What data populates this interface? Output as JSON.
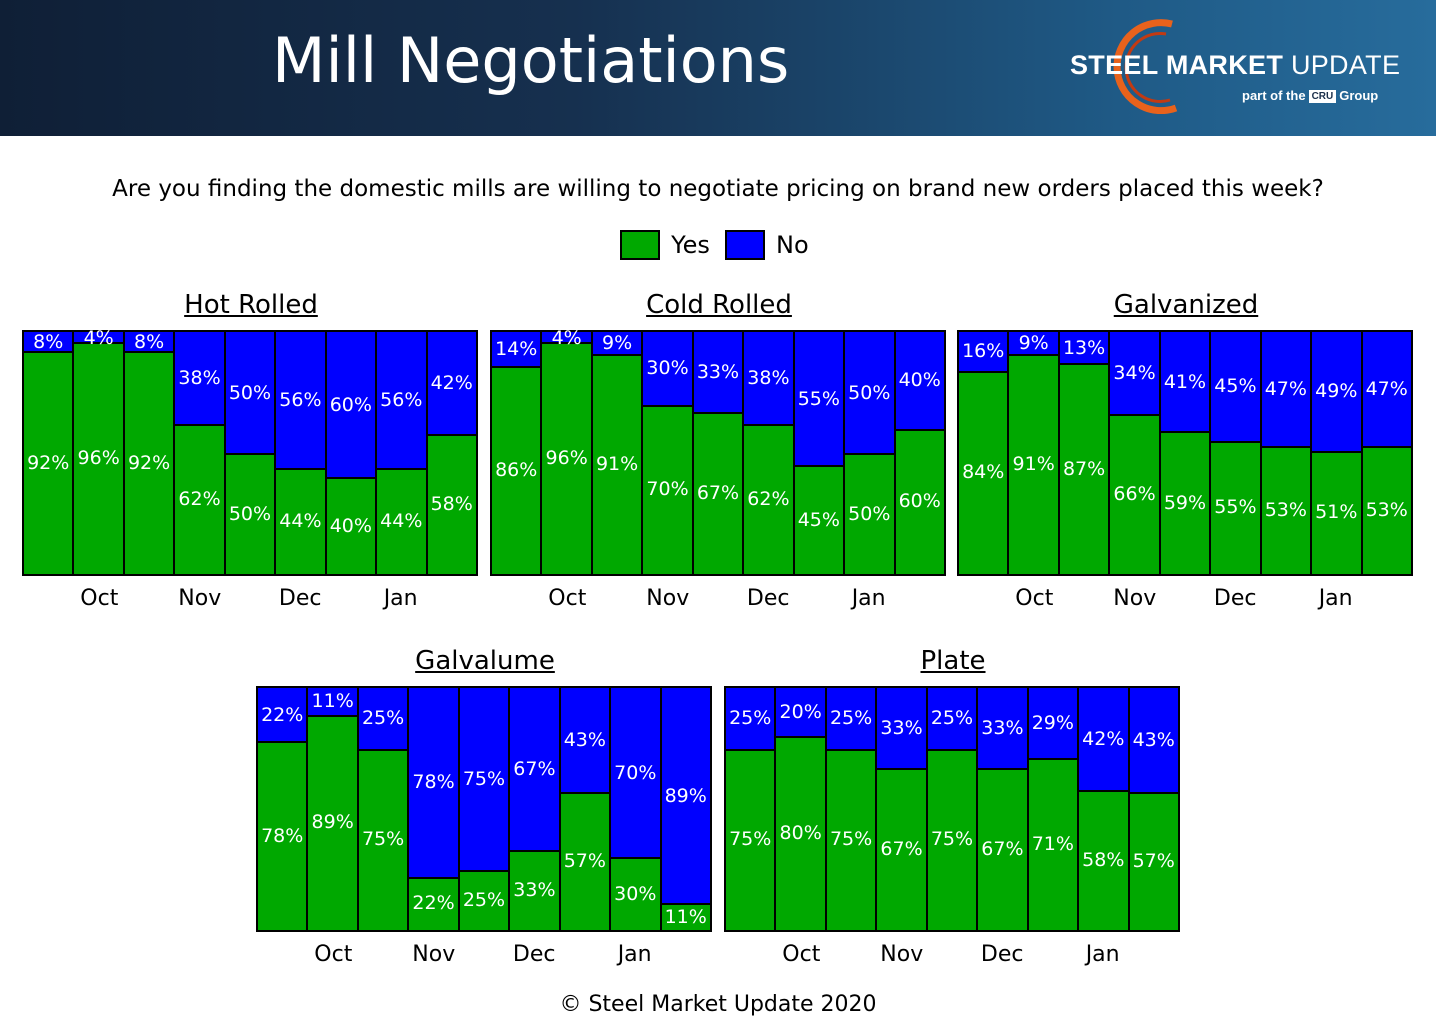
{
  "header": {
    "title": "Mill Negotiations"
  },
  "logo": {
    "name_bold": "STEEL MARKET",
    "name_regular": "UPDATE",
    "sub_prefix": "part of the",
    "sub_badge": "CRU",
    "sub_suffix": "Group"
  },
  "question": "Are you finding the domestic mills are willing to negotiate pricing on brand new orders placed this week?",
  "legend": {
    "yes": "Yes",
    "no": "No"
  },
  "colors": {
    "yes": "#00a800",
    "no": "#0000ff"
  },
  "footer": "© Steel Market Update 2020",
  "chart_data": [
    {
      "type": "bar",
      "stacked": true,
      "title": "Hot Rolled",
      "ylim": [
        0,
        100
      ],
      "x_ticks": [
        "Oct",
        "Nov",
        "Dec",
        "Jan"
      ],
      "series": [
        {
          "name": "Yes",
          "values": [
            92,
            96,
            92,
            62,
            50,
            44,
            40,
            44,
            58
          ]
        },
        {
          "name": "No",
          "values": [
            8,
            4,
            8,
            38,
            50,
            56,
            60,
            56,
            42
          ]
        }
      ]
    },
    {
      "type": "bar",
      "stacked": true,
      "title": "Cold Rolled",
      "ylim": [
        0,
        100
      ],
      "x_ticks": [
        "Oct",
        "Nov",
        "Dec",
        "Jan"
      ],
      "series": [
        {
          "name": "Yes",
          "values": [
            86,
            96,
            91,
            70,
            67,
            62,
            45,
            50,
            60
          ]
        },
        {
          "name": "No",
          "values": [
            14,
            4,
            9,
            30,
            33,
            38,
            55,
            50,
            40
          ]
        }
      ]
    },
    {
      "type": "bar",
      "stacked": true,
      "title": "Galvanized",
      "ylim": [
        0,
        100
      ],
      "x_ticks": [
        "Oct",
        "Nov",
        "Dec",
        "Jan"
      ],
      "series": [
        {
          "name": "Yes",
          "values": [
            84,
            91,
            87,
            66,
            59,
            55,
            53,
            51,
            53
          ]
        },
        {
          "name": "No",
          "values": [
            16,
            9,
            13,
            34,
            41,
            45,
            47,
            49,
            47
          ]
        }
      ]
    },
    {
      "type": "bar",
      "stacked": true,
      "title": "Galvalume",
      "ylim": [
        0,
        100
      ],
      "x_ticks": [
        "Oct",
        "Nov",
        "Dec",
        "Jan"
      ],
      "series": [
        {
          "name": "Yes",
          "values": [
            78,
            89,
            75,
            22,
            25,
            33,
            57,
            30,
            11
          ]
        },
        {
          "name": "No",
          "values": [
            22,
            11,
            25,
            78,
            75,
            67,
            43,
            70,
            89
          ]
        }
      ]
    },
    {
      "type": "bar",
      "stacked": true,
      "title": "Plate",
      "ylim": [
        0,
        100
      ],
      "x_ticks": [
        "Oct",
        "Nov",
        "Dec",
        "Jan"
      ],
      "series": [
        {
          "name": "Yes",
          "values": [
            75,
            80,
            75,
            67,
            75,
            67,
            71,
            58,
            57
          ]
        },
        {
          "name": "No",
          "values": [
            25,
            20,
            25,
            33,
            25,
            33,
            29,
            42,
            43
          ]
        }
      ]
    }
  ]
}
